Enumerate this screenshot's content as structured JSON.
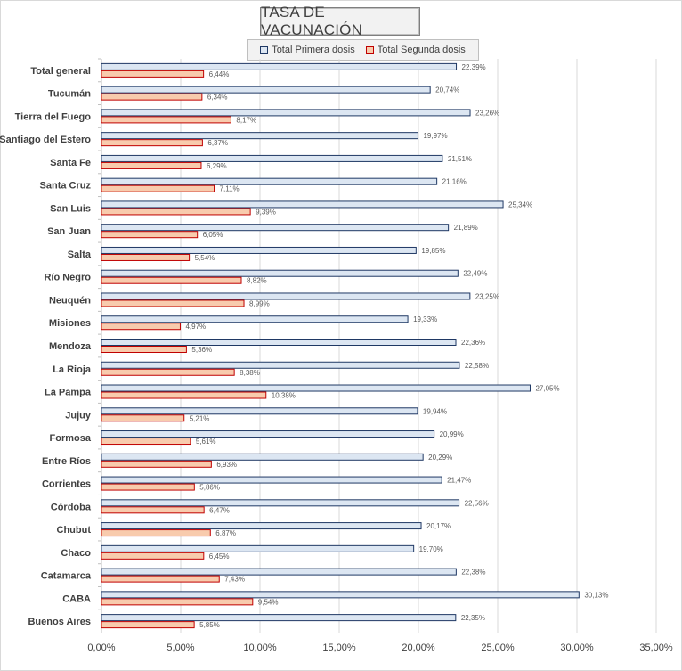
{
  "chart_data": {
    "type": "bar",
    "orientation": "horizontal",
    "title": "TASA DE VACUNACIÓN",
    "categories": [
      "Total general",
      "Tucumán",
      "Tierra del Fuego",
      "Santiago del Estero",
      "Santa Fe",
      "Santa Cruz",
      "San Luis",
      "San Juan",
      "Salta",
      "Río Negro",
      "Neuquén",
      "Misiones",
      "Mendoza",
      "La Rioja",
      "La Pampa",
      "Jujuy",
      "Formosa",
      "Entre Ríos",
      "Corrientes",
      "Córdoba",
      "Chubut",
      "Chaco",
      "Catamarca",
      "CABA",
      "Buenos Aires"
    ],
    "series": [
      {
        "name": "Total Primera dosis",
        "color": "#dce6f2",
        "stroke": "#1f3864",
        "values": [
          22.39,
          20.74,
          23.26,
          19.97,
          21.51,
          21.16,
          25.34,
          21.89,
          19.85,
          22.49,
          23.25,
          19.33,
          22.36,
          22.58,
          27.05,
          19.94,
          20.99,
          20.29,
          21.47,
          22.56,
          20.17,
          19.7,
          22.38,
          30.13,
          22.35
        ],
        "labels": [
          "22,39%",
          "20,74%",
          "23,26%",
          "19,97%",
          "21,51%",
          "21,16%",
          "25,34%",
          "21,89%",
          "19,85%",
          "22,49%",
          "23,25%",
          "19,33%",
          "22,36%",
          "22,58%",
          "27,05%",
          "19,94%",
          "20,99%",
          "20,29%",
          "21,47%",
          "22,56%",
          "20,17%",
          "19,70%",
          "22,38%",
          "30,13%",
          "22,35%"
        ]
      },
      {
        "name": "Total Segunda dosis",
        "color": "#f8cbad",
        "stroke": "#c00000",
        "values": [
          6.44,
          6.34,
          8.17,
          6.37,
          6.29,
          7.11,
          9.39,
          6.05,
          5.54,
          8.82,
          8.99,
          4.97,
          5.36,
          8.38,
          10.38,
          5.21,
          5.61,
          6.93,
          5.86,
          6.47,
          6.87,
          6.45,
          7.43,
          9.54,
          5.85
        ],
        "labels": [
          "6,44%",
          "6,34%",
          "8,17%",
          "6,37%",
          "6,29%",
          "7,11%",
          "9,39%",
          "6,05%",
          "5,54%",
          "8,82%",
          "8,99%",
          "4,97%",
          "5,36%",
          "8,38%",
          "10,38%",
          "5,21%",
          "5,61%",
          "6,93%",
          "5,86%",
          "6,47%",
          "6,87%",
          "6,45%",
          "7,43%",
          "9,54%",
          "5,85%"
        ]
      }
    ],
    "xlim": [
      0,
      35
    ],
    "xticks": [
      0,
      5,
      10,
      15,
      20,
      25,
      30,
      35
    ],
    "xtick_labels": [
      "0,00%",
      "5,00%",
      "10,00%",
      "15,00%",
      "20,00%",
      "25,00%",
      "30,00%",
      "35,00%"
    ],
    "grid": true,
    "legend": "top"
  }
}
